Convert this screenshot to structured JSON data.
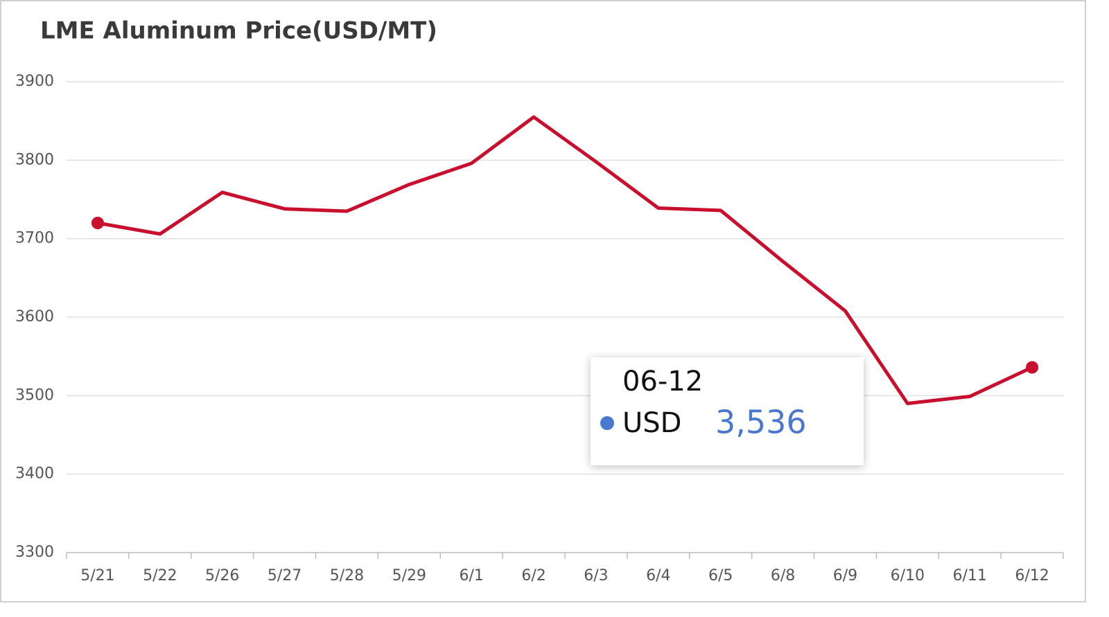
{
  "chart_data": {
    "type": "line",
    "title": "LME Aluminum Price(USD/MT)",
    "categories": [
      "5/21",
      "5/22",
      "5/26",
      "5/27",
      "5/28",
      "5/29",
      "6/1",
      "6/2",
      "6/3",
      "6/4",
      "6/5",
      "6/8",
      "6/9",
      "6/10",
      "6/11",
      "6/12"
    ],
    "series": [
      {
        "name": "USD",
        "color": "#c8102e",
        "values": [
          3720,
          3706,
          3759,
          3738,
          3735,
          3769,
          3796,
          3855,
          3798,
          3739,
          3736,
          3671,
          3608,
          3490,
          3499,
          3536
        ]
      }
    ],
    "ylim": [
      3300,
      3900
    ],
    "yticks": [
      3300,
      3400,
      3500,
      3600,
      3700,
      3800,
      3900
    ],
    "grid": true,
    "endpoint_markers": true,
    "tooltip": {
      "title": "06-12",
      "value_label": "3,536",
      "color": "#4a78d0"
    }
  }
}
